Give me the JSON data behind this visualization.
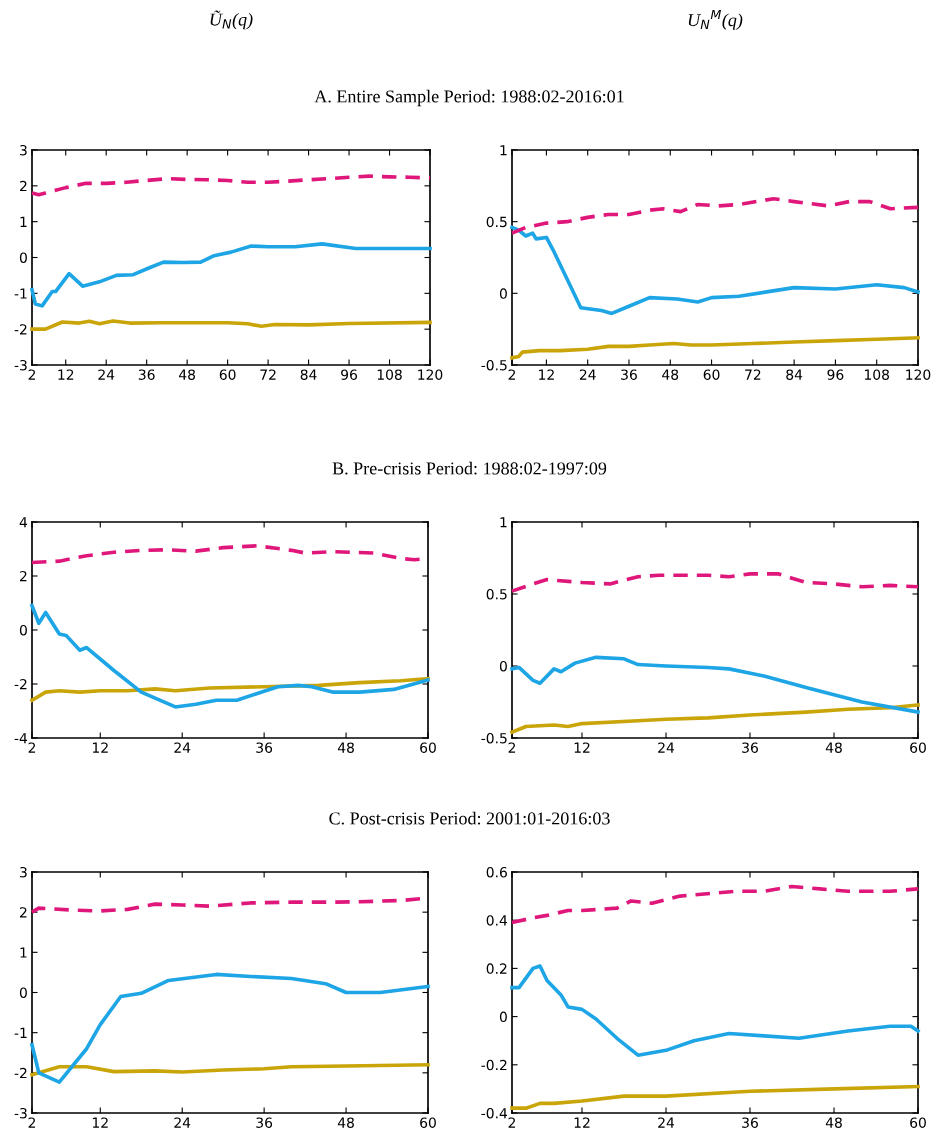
{
  "chart_data": [
    {
      "type": "line",
      "subtitle": "Ũ$_{N}$(q)",
      "title": "A. Entire Sample Period: 1988:02-2016:01",
      "xlim": [
        2,
        120
      ],
      "xticks": [
        2,
        12,
        24,
        36,
        48,
        60,
        72,
        84,
        96,
        108,
        120
      ],
      "ylim": [
        -3,
        3
      ],
      "yticks": [
        -3,
        -2,
        -1,
        0,
        1,
        2,
        3
      ],
      "series": [
        {
          "color": "#e0177a",
          "line_style": "dashed",
          "x": [
            2,
            4,
            6,
            12,
            18,
            24,
            30,
            36,
            42,
            48,
            54,
            60,
            66,
            72,
            78,
            84,
            90,
            96,
            102,
            108,
            114,
            120
          ],
          "values": [
            1.8,
            1.75,
            1.8,
            1.95,
            2.07,
            2.07,
            2.1,
            2.15,
            2.2,
            2.18,
            2.17,
            2.15,
            2.1,
            2.1,
            2.13,
            2.17,
            2.2,
            2.24,
            2.27,
            2.25,
            2.24,
            2.22
          ]
        },
        {
          "color": "#1ea5e6",
          "line_style": "solid",
          "x": [
            2,
            3,
            5,
            8,
            9,
            13,
            17,
            22,
            27,
            32,
            37,
            41,
            47,
            52,
            56,
            61,
            67,
            72,
            80,
            88,
            98,
            120
          ],
          "values": [
            -0.9,
            -1.3,
            -1.35,
            -0.95,
            -0.95,
            -0.45,
            -0.8,
            -0.68,
            -0.5,
            -0.48,
            -0.28,
            -0.13,
            -0.14,
            -0.13,
            0.05,
            0.15,
            0.32,
            0.3,
            0.3,
            0.38,
            0.25,
            0.25
          ]
        },
        {
          "color": "#c9a50a",
          "line_style": "solid",
          "x": [
            2,
            6,
            11,
            16,
            19,
            22,
            26,
            31,
            40,
            60,
            66,
            70,
            74,
            84,
            96,
            120
          ],
          "values": [
            -2,
            -2,
            -1.8,
            -1.83,
            -1.78,
            -1.85,
            -1.77,
            -1.83,
            -1.82,
            -1.82,
            -1.85,
            -1.92,
            -1.87,
            -1.88,
            -1.84,
            -1.81
          ]
        }
      ]
    },
    {
      "type": "line",
      "subtitle": "U$_{N}$$^{M}$(q)",
      "xlim": [
        2,
        120
      ],
      "xticks": [
        2,
        12,
        24,
        36,
        48,
        60,
        72,
        84,
        96,
        108,
        120
      ],
      "ylim": [
        -0.5,
        1
      ],
      "yticks": [
        -0.5,
        0,
        0.5,
        1
      ],
      "series": [
        {
          "color": "#e0177a",
          "line_style": "dashed",
          "x": [
            2,
            6,
            12,
            18,
            24,
            30,
            36,
            42,
            46,
            51,
            56,
            62,
            68,
            78,
            84,
            94,
            100,
            106,
            112,
            120
          ],
          "values": [
            0.42,
            0.46,
            0.49,
            0.5,
            0.53,
            0.55,
            0.55,
            0.58,
            0.59,
            0.57,
            0.62,
            0.61,
            0.62,
            0.66,
            0.64,
            0.61,
            0.64,
            0.64,
            0.59,
            0.6
          ]
        },
        {
          "color": "#1ea5e6",
          "line_style": "solid",
          "x": [
            2,
            4,
            6,
            8,
            9,
            12,
            14,
            18,
            22,
            28,
            31,
            36,
            42,
            50,
            56,
            60,
            68,
            76,
            84,
            96,
            108,
            116,
            120
          ],
          "values": [
            0.46,
            0.44,
            0.4,
            0.42,
            0.38,
            0.39,
            0.3,
            0.1,
            -0.1,
            -0.12,
            -0.14,
            -0.09,
            -0.03,
            -0.04,
            -0.06,
            -0.03,
            -0.02,
            0.01,
            0.04,
            0.03,
            0.06,
            0.04,
            0.01
          ]
        },
        {
          "color": "#c9a50a",
          "line_style": "solid",
          "x": [
            2,
            4,
            5,
            10,
            16,
            24,
            30,
            36,
            42,
            49,
            54,
            60,
            72,
            84,
            96,
            108,
            120
          ],
          "values": [
            -0.45,
            -0.44,
            -0.41,
            -0.4,
            -0.4,
            -0.39,
            -0.37,
            -0.37,
            -0.36,
            -0.35,
            -0.36,
            -0.36,
            -0.35,
            -0.34,
            -0.33,
            -0.32,
            -0.31
          ]
        }
      ]
    },
    {
      "type": "line",
      "title": "B. Pre-crisis Period: 1988:02-1997:09",
      "xlim": [
        2,
        60
      ],
      "xticks": [
        2,
        12,
        24,
        36,
        48,
        60
      ],
      "ylim": [
        -4,
        4
      ],
      "yticks": [
        -4,
        -2,
        0,
        2,
        4
      ],
      "series": [
        {
          "color": "#e0177a",
          "line_style": "dashed",
          "x": [
            2,
            6,
            10,
            14,
            18,
            22,
            26,
            30,
            35,
            40,
            42,
            46,
            52,
            56,
            58,
            60
          ],
          "values": [
            2.5,
            2.55,
            2.75,
            2.88,
            2.95,
            2.97,
            2.92,
            3.05,
            3.12,
            2.95,
            2.85,
            2.9,
            2.85,
            2.65,
            2.6,
            2.65
          ]
        },
        {
          "color": "#1ea5e6",
          "line_style": "solid",
          "x": [
            2,
            3,
            4,
            6,
            7,
            9,
            10,
            14,
            18,
            23,
            26,
            29,
            32,
            35,
            38,
            41,
            43,
            46,
            50,
            55,
            60
          ],
          "values": [
            0.9,
            0.25,
            0.65,
            -0.15,
            -0.2,
            -0.75,
            -0.65,
            -1.5,
            -2.3,
            -2.85,
            -2.75,
            -2.6,
            -2.6,
            -2.35,
            -2.1,
            -2.05,
            -2.1,
            -2.3,
            -2.3,
            -2.2,
            -1.85
          ]
        },
        {
          "color": "#c9a50a",
          "line_style": "solid",
          "x": [
            2,
            4,
            6,
            9,
            12,
            16,
            20,
            23,
            28,
            36,
            44,
            50,
            56,
            60
          ],
          "values": [
            -2.6,
            -2.3,
            -2.25,
            -2.3,
            -2.25,
            -2.25,
            -2.18,
            -2.25,
            -2.15,
            -2.1,
            -2.05,
            -1.95,
            -1.88,
            -1.8
          ]
        }
      ]
    },
    {
      "type": "line",
      "xlim": [
        2,
        60
      ],
      "xticks": [
        2,
        12,
        24,
        36,
        48,
        60
      ],
      "ylim": [
        -0.5,
        1
      ],
      "yticks": [
        -0.5,
        0,
        0.5,
        1
      ],
      "series": [
        {
          "color": "#e0177a",
          "line_style": "dashed",
          "x": [
            2,
            5,
            7,
            12,
            16,
            20,
            23,
            26,
            30,
            33,
            36,
            40,
            42,
            44,
            48,
            52,
            56,
            60
          ],
          "values": [
            0.52,
            0.57,
            0.6,
            0.58,
            0.57,
            0.62,
            0.63,
            0.63,
            0.63,
            0.62,
            0.64,
            0.64,
            0.61,
            0.58,
            0.57,
            0.55,
            0.56,
            0.55
          ]
        },
        {
          "color": "#1ea5e6",
          "line_style": "solid",
          "x": [
            2,
            3,
            5,
            6,
            8,
            9,
            11,
            14,
            18,
            20,
            24,
            30,
            33,
            38,
            44,
            52,
            60
          ],
          "values": [
            -0.02,
            -0.01,
            -0.1,
            -0.12,
            -0.02,
            -0.04,
            0.02,
            0.06,
            0.05,
            0.01,
            0,
            -0.01,
            -0.02,
            -0.07,
            -0.15,
            -0.25,
            -0.32
          ]
        },
        {
          "color": "#c9a50a",
          "line_style": "solid",
          "x": [
            2,
            4,
            8,
            10,
            12,
            20,
            24,
            30,
            36,
            44,
            50,
            56,
            60
          ],
          "values": [
            -0.46,
            -0.42,
            -0.41,
            -0.42,
            -0.4,
            -0.38,
            -0.37,
            -0.36,
            -0.34,
            -0.32,
            -0.3,
            -0.29,
            -0.27
          ]
        }
      ]
    },
    {
      "type": "line",
      "title": "C. Post-crisis Period: 2001:01-2016:03",
      "xlim": [
        2,
        60
      ],
      "xticks": [
        2,
        12,
        24,
        36,
        48,
        60
      ],
      "ylim": [
        -3,
        3
      ],
      "yticks": [
        -3,
        -2,
        -1,
        0,
        1,
        2,
        3
      ],
      "series": [
        {
          "color": "#e0177a",
          "line_style": "dashed",
          "x": [
            2,
            3,
            8,
            12,
            16,
            20,
            24,
            28,
            34,
            40,
            46,
            50,
            56,
            60
          ],
          "values": [
            2.0,
            2.1,
            2.05,
            2.03,
            2.07,
            2.2,
            2.18,
            2.15,
            2.23,
            2.25,
            2.25,
            2.26,
            2.29,
            2.35
          ]
        },
        {
          "color": "#1ea5e6",
          "line_style": "solid",
          "x": [
            2,
            3,
            6,
            10,
            12,
            15,
            18,
            22,
            29,
            34,
            40,
            45,
            48,
            53,
            60
          ],
          "values": [
            -1.3,
            -2.0,
            -2.23,
            -1.4,
            -0.8,
            -0.1,
            -0.02,
            0.3,
            0.45,
            0.4,
            0.35,
            0.22,
            0,
            0,
            0.15
          ]
        },
        {
          "color": "#c9a50a",
          "line_style": "solid",
          "x": [
            2,
            6,
            10,
            14,
            20,
            24,
            30,
            36,
            40,
            48,
            60
          ],
          "values": [
            -2.05,
            -1.85,
            -1.85,
            -1.97,
            -1.95,
            -1.98,
            -1.93,
            -1.9,
            -1.85,
            -1.83,
            -1.8
          ]
        }
      ]
    },
    {
      "type": "line",
      "xlim": [
        2,
        60
      ],
      "xticks": [
        2,
        12,
        24,
        36,
        48,
        60
      ],
      "ylim": [
        -0.4,
        0.6
      ],
      "yticks": [
        -0.4,
        -0.2,
        0,
        0.2,
        0.4,
        0.6
      ],
      "series": [
        {
          "color": "#e0177a",
          "line_style": "dashed",
          "x": [
            2,
            5,
            7,
            10,
            12,
            17,
            19,
            22,
            26,
            34,
            38,
            42,
            46,
            50,
            56,
            60
          ],
          "values": [
            0.39,
            0.41,
            0.42,
            0.44,
            0.44,
            0.45,
            0.48,
            0.47,
            0.5,
            0.52,
            0.52,
            0.54,
            0.53,
            0.52,
            0.52,
            0.53
          ]
        },
        {
          "color": "#1ea5e6",
          "line_style": "solid",
          "x": [
            2,
            3,
            5,
            6,
            7,
            9,
            10,
            12,
            14,
            17,
            20,
            24,
            28,
            33,
            38,
            43,
            50,
            56,
            59,
            60
          ],
          "values": [
            0.12,
            0.12,
            0.2,
            0.21,
            0.15,
            0.09,
            0.04,
            0.03,
            -0.01,
            -0.09,
            -0.16,
            -0.14,
            -0.1,
            -0.07,
            -0.08,
            -0.09,
            -0.06,
            -0.04,
            -0.04,
            -0.06
          ]
        },
        {
          "color": "#c9a50a",
          "line_style": "solid",
          "x": [
            2,
            4,
            6,
            8,
            12,
            18,
            24,
            36,
            48,
            60
          ],
          "values": [
            -0.38,
            -0.38,
            -0.36,
            -0.36,
            -0.35,
            -0.33,
            -0.33,
            -0.31,
            -0.3,
            -0.29
          ]
        }
      ]
    }
  ]
}
